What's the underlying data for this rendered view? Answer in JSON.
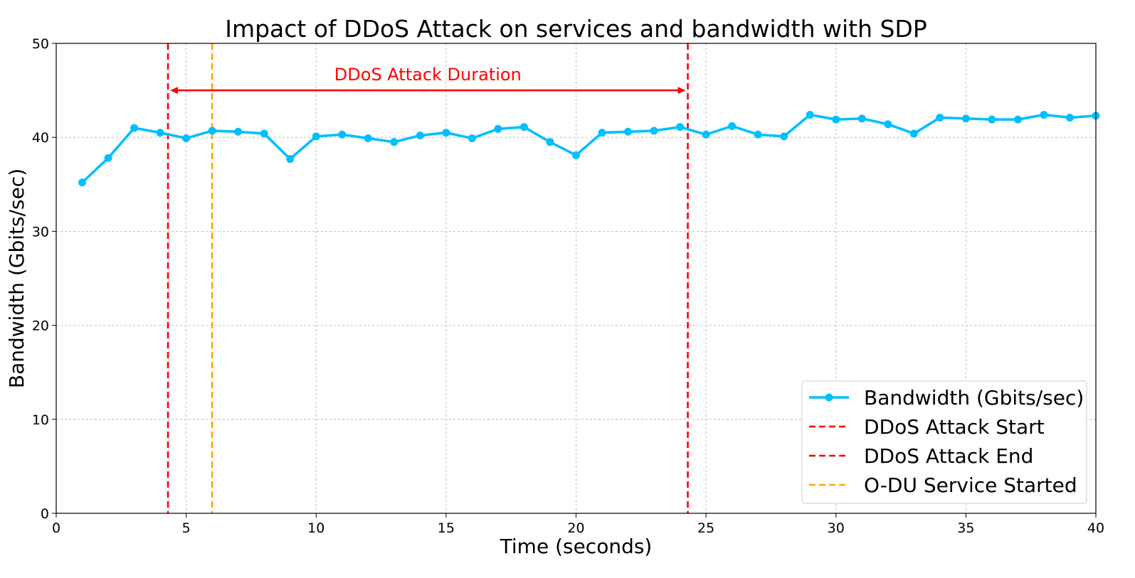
{
  "chart_data": {
    "type": "line",
    "title": "Impact of DDoS Attack on services and bandwidth with SDP",
    "xlabel": "Time (seconds)",
    "ylabel": "Bandwidth (Gbits/sec)",
    "xlim": [
      0,
      40
    ],
    "ylim": [
      0,
      50
    ],
    "xticks": [
      0,
      5,
      10,
      15,
      20,
      25,
      30,
      35,
      40
    ],
    "yticks": [
      0,
      10,
      20,
      30,
      40,
      50
    ],
    "grid": true,
    "legend_position": "bottom-right",
    "series": [
      {
        "name": "Bandwidth (Gbits/sec)",
        "color": "#00bfff",
        "marker": "circle",
        "x": [
          1,
          2,
          3,
          4,
          5,
          6,
          7,
          8,
          9,
          10,
          11,
          12,
          13,
          14,
          15,
          16,
          17,
          18,
          19,
          20,
          21,
          22,
          23,
          24,
          25,
          26,
          27,
          28,
          29,
          30,
          31,
          32,
          33,
          34,
          35,
          36,
          37,
          38,
          39,
          40
        ],
        "y": [
          35.2,
          37.8,
          41.0,
          40.5,
          39.9,
          40.7,
          40.6,
          40.4,
          37.7,
          40.1,
          40.3,
          39.9,
          39.5,
          40.2,
          40.5,
          39.9,
          40.9,
          41.1,
          39.5,
          38.1,
          40.5,
          40.6,
          40.7,
          41.1,
          40.3,
          41.2,
          40.3,
          40.1,
          42.4,
          41.9,
          42.0,
          41.4,
          40.4,
          42.1,
          42.0,
          41.9,
          41.9,
          42.4,
          42.1,
          42.3
        ]
      }
    ],
    "vlines": [
      {
        "name": "DDoS Attack Start",
        "x": 4.3,
        "color": "#ff0000",
        "style": "dashed"
      },
      {
        "name": "DDoS Attack End",
        "x": 24.3,
        "color": "#ff0000",
        "style": "dashed"
      },
      {
        "name": "O-DU Service Started",
        "x": 6.0,
        "color": "#ffa500",
        "style": "dashed"
      }
    ],
    "annotations": [
      {
        "text": "DDoS Attack Duration",
        "x_start": 4.3,
        "x_end": 24.3,
        "y": 45,
        "color": "#ff0000",
        "arrow": "double"
      }
    ]
  }
}
